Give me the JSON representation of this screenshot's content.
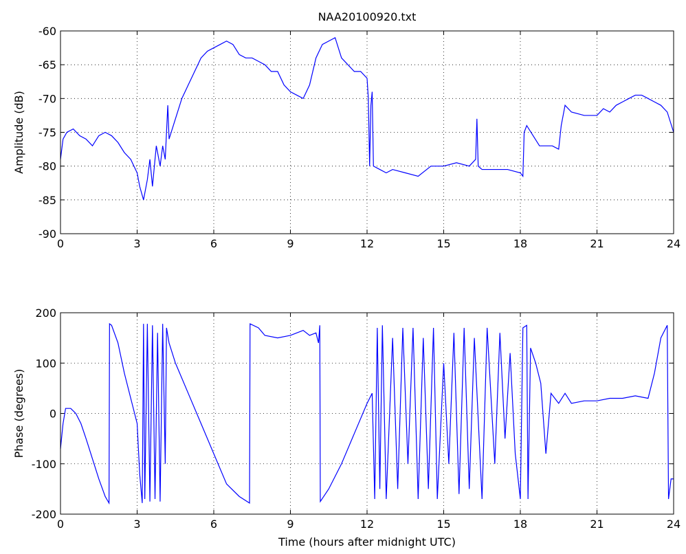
{
  "chart_data": [
    {
      "type": "line",
      "title": "NAA20100920.txt",
      "ylabel": "Amplitude (dB)",
      "color": "#0000ff",
      "grid": true,
      "xlim": [
        0,
        24
      ],
      "xticks": [
        0,
        3,
        6,
        9,
        12,
        15,
        18,
        21,
        24
      ],
      "ylim": [
        -90,
        -60
      ],
      "yticks": [
        -90,
        -85,
        -80,
        -75,
        -70,
        -65,
        -60
      ],
      "x": [
        0,
        0.1,
        0.25,
        0.5,
        0.75,
        1,
        1.25,
        1.5,
        1.75,
        2,
        2.25,
        2.5,
        2.75,
        3,
        3.1,
        3.25,
        3.4,
        3.5,
        3.6,
        3.75,
        3.9,
        4,
        4.1,
        4.2,
        4.25,
        4.5,
        4.75,
        5,
        5.25,
        5.5,
        5.75,
        6,
        6.25,
        6.5,
        6.75,
        7,
        7.25,
        7.5,
        7.75,
        8,
        8.25,
        8.5,
        8.75,
        9,
        9.25,
        9.5,
        9.75,
        10,
        10.25,
        10.5,
        10.75,
        11,
        11.25,
        11.5,
        11.75,
        12,
        12.05,
        12.1,
        12.15,
        12.2,
        12.25,
        12.5,
        12.75,
        13,
        13.5,
        14,
        14.5,
        15,
        15.5,
        16,
        16.25,
        16.3,
        16.35,
        16.5,
        17,
        17.5,
        18,
        18.1,
        18.15,
        18.25,
        18.5,
        18.75,
        19,
        19.25,
        19.5,
        19.6,
        19.75,
        20,
        20.5,
        21,
        21.25,
        21.5,
        21.75,
        22,
        22.25,
        22.5,
        22.75,
        23,
        23.25,
        23.5,
        23.75,
        24
      ],
      "values": [
        -79,
        -76,
        -75,
        -74.5,
        -75.5,
        -76,
        -77,
        -75.5,
        -75,
        -75.5,
        -76.5,
        -78,
        -79,
        -81,
        -83,
        -85,
        -82,
        -79,
        -83,
        -77,
        -80,
        -77,
        -79,
        -71,
        -76,
        -73,
        -70,
        -68,
        -66,
        -64,
        -63,
        -62.5,
        -62,
        -61.5,
        -62,
        -63.5,
        -64,
        -64,
        -64.5,
        -65,
        -66,
        -66,
        -68,
        -69,
        -69.5,
        -70,
        -68,
        -64,
        -62,
        -61.5,
        -61,
        -64,
        -65,
        -66,
        -66,
        -67,
        -70,
        -80,
        -71,
        -69,
        -80,
        -80.5,
        -81,
        -80.5,
        -81,
        -81.5,
        -80,
        -80,
        -79.5,
        -80,
        -79,
        -73,
        -80,
        -80.5,
        -80.5,
        -80.5,
        -81,
        -81.5,
        -75,
        -74,
        -75.5,
        -77,
        -77,
        -77,
        -77.5,
        -74,
        -71,
        -72,
        -72.5,
        -72.5,
        -71.5,
        -72,
        -71,
        -70.5,
        -70,
        -69.5,
        -69.5,
        -70,
        -70.5,
        -71,
        -72,
        -75
      ]
    },
    {
      "type": "line",
      "ylabel": "Phase (degrees)",
      "xlabel": "Time (hours after midnight UTC)",
      "color": "#0000ff",
      "grid": true,
      "xlim": [
        0,
        24
      ],
      "xticks": [
        0,
        3,
        6,
        9,
        12,
        15,
        18,
        21,
        24
      ],
      "ylim": [
        -200,
        200
      ],
      "yticks": [
        -200,
        -100,
        0,
        100,
        200
      ],
      "x": [
        0,
        0.1,
        0.2,
        0.4,
        0.6,
        0.8,
        1,
        1.25,
        1.5,
        1.75,
        1.9,
        1.92,
        2,
        2.25,
        2.5,
        2.75,
        3,
        3.1,
        3.2,
        3.25,
        3.3,
        3.4,
        3.5,
        3.6,
        3.7,
        3.8,
        3.9,
        4,
        4.1,
        4.15,
        4.25,
        4.5,
        5,
        5.5,
        6,
        6.5,
        7,
        7.4,
        7.42,
        7.75,
        8,
        8.5,
        9,
        9.5,
        9.75,
        10,
        10.1,
        10.15,
        10.17,
        10.5,
        11,
        11.5,
        12,
        12.2,
        12.3,
        12.4,
        12.5,
        12.6,
        12.75,
        13,
        13.2,
        13.4,
        13.6,
        13.8,
        14,
        14.2,
        14.4,
        14.6,
        14.75,
        15,
        15.2,
        15.4,
        15.6,
        15.8,
        16,
        16.2,
        16.5,
        16.7,
        17,
        17.2,
        17.4,
        17.6,
        17.8,
        18,
        18.1,
        18.25,
        18.3,
        18.4,
        18.6,
        18.8,
        19,
        19.2,
        19.5,
        19.75,
        20,
        20.5,
        21,
        21.5,
        22,
        22.5,
        23,
        23.25,
        23.5,
        23.75,
        23.8,
        23.9,
        24
      ],
      "values": [
        -70,
        -20,
        10,
        10,
        0,
        -20,
        -50,
        -90,
        -130,
        -165,
        -178,
        178,
        175,
        140,
        80,
        30,
        -20,
        -120,
        -178,
        178,
        -170,
        178,
        -175,
        175,
        -170,
        160,
        -175,
        178,
        -100,
        170,
        140,
        100,
        40,
        -20,
        -80,
        -140,
        -165,
        -178,
        178,
        170,
        155,
        150,
        155,
        165,
        155,
        160,
        140,
        175,
        -175,
        -150,
        -100,
        -40,
        20,
        40,
        -170,
        170,
        -150,
        175,
        -170,
        150,
        -150,
        170,
        -100,
        170,
        -170,
        150,
        -150,
        170,
        -170,
        100,
        -100,
        160,
        -160,
        170,
        -150,
        150,
        -170,
        170,
        -100,
        160,
        -50,
        120,
        -80,
        -170,
        170,
        175,
        -170,
        130,
        100,
        60,
        -80,
        40,
        20,
        40,
        20,
        25,
        25,
        30,
        30,
        35,
        30,
        80,
        150,
        175,
        -170,
        -130,
        -130
      ]
    }
  ]
}
